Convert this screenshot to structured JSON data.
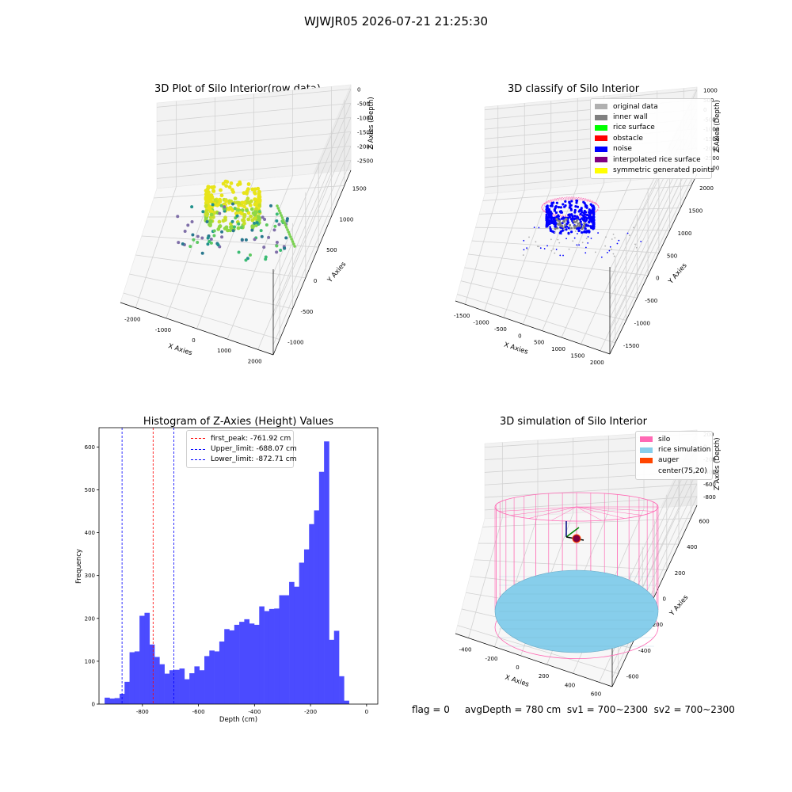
{
  "figure": {
    "suptitle": "WJWJR05 2026-07-21 21:25:30",
    "footer": "flag = 0     avgDepth = 780 cm  sv1 = 700~2300  sv2 = 700~2300"
  },
  "colors": {
    "silo": "#ff69b4",
    "rice_simulation": "#87ceeb",
    "auger": "#ff4500",
    "histogram": "#4b4bff",
    "noise": "#0000ff",
    "inner_wall": "#808080",
    "original_data": "#b0b0b0",
    "rice_surface": "#00ff00",
    "obstacle": "#ff0000",
    "interpolated_rice_surface": "#800080",
    "symmetric_generated_points": "#ffff00"
  },
  "chart_data": [
    {
      "type": "scatter",
      "projection": "3d",
      "title": "3D Plot of Silo Interior(row data)",
      "xlabel": "X Axies",
      "ylabel": "Y Axies",
      "zlabel": "Z Axies (Depth)",
      "x_ticks": [
        "-2000",
        "-1000",
        "0",
        "1000",
        "2000"
      ],
      "y_ticks": [
        "-1000",
        "-500",
        "0",
        "500",
        "1000",
        "1500"
      ],
      "z_ticks": [
        "0",
        "-500",
        "-1000",
        "-1500",
        "-2000",
        "-2500"
      ],
      "colormap": "viridis",
      "grid": true
    },
    {
      "type": "scatter",
      "projection": "3d",
      "title": "3D classify of Silo Interior",
      "xlabel": "X Axies",
      "ylabel": "Y Axies",
      "zlabel": "Z Axies (Depth)",
      "x_ticks": [
        "-1500",
        "-1000",
        "-500",
        "0",
        "500",
        "1000",
        "1500",
        "2000"
      ],
      "y_ticks": [
        "-1500",
        "-1000",
        "-500",
        "0",
        "500",
        "1000",
        "1500",
        "2000"
      ],
      "z_ticks": [
        "1000",
        "500",
        "0",
        "-500",
        "-1000",
        "-1500",
        "-2000",
        "-2500",
        "-3000"
      ],
      "legend_position": "top-right",
      "legend": [
        {
          "label": "original data",
          "color": "#b0b0b0"
        },
        {
          "label": "inner wall",
          "color": "#808080"
        },
        {
          "label": "rice surface",
          "color": "#00ff00"
        },
        {
          "label": "obstacle",
          "color": "#ff0000"
        },
        {
          "label": "noise",
          "color": "#0000ff"
        },
        {
          "label": "interpolated rice surface",
          "color": "#800080"
        },
        {
          "label": "symmetric generated points",
          "color": "#ffff00"
        }
      ],
      "grid": true
    },
    {
      "type": "bar",
      "subtype": "histogram",
      "title": "Histogram of Z-Axies (Height) Values",
      "xlabel": "Depth (cm)",
      "ylabel": "Frequency",
      "xlim": [
        -955,
        40
      ],
      "ylim": [
        0,
        645
      ],
      "x_ticks": [
        -800,
        -600,
        -400,
        -200,
        0
      ],
      "y_ticks": [
        0,
        100,
        200,
        300,
        400,
        500,
        600
      ],
      "bin_start": -935,
      "bin_width": 17.8,
      "values": [
        15,
        13,
        14,
        24,
        52,
        121,
        123,
        206,
        213,
        139,
        110,
        93,
        71,
        79,
        80,
        83,
        58,
        72,
        88,
        79,
        112,
        125,
        123,
        146,
        175,
        172,
        185,
        192,
        198,
        188,
        185,
        228,
        217,
        222,
        223,
        254,
        254,
        285,
        274,
        330,
        361,
        420,
        452,
        542,
        613,
        150,
        171,
        65,
        8
      ],
      "lines": [
        {
          "label": "first_peak: -761.92 cm",
          "x": -761.92,
          "color": "#ff0000"
        },
        {
          "label": "Upper_limit: -688.07 cm",
          "x": -688.07,
          "color": "#0000ff"
        },
        {
          "label": "Lower_limit: -872.71 cm",
          "x": -872.71,
          "color": "#0000ff"
        }
      ],
      "legend_position": "top-center",
      "grid": false
    },
    {
      "type": "area",
      "projection": "3d",
      "title": "3D simulation of Silo Interior",
      "xlabel": "X Axies",
      "ylabel": "Y Axies",
      "zlabel": "Z Axies (Depth)",
      "x_ticks": [
        "-400",
        "-200",
        "0",
        "200",
        "400",
        "600"
      ],
      "y_ticks": [
        "-600",
        "-400",
        "-200",
        "0",
        "200",
        "400",
        "600"
      ],
      "z_ticks": [
        "200",
        "0",
        "-200",
        "-400",
        "-600",
        "-800"
      ],
      "legend_position": "top-right",
      "legend": [
        {
          "label": "silo",
          "color": "#ff69b4"
        },
        {
          "label": "rice simulation",
          "color": "#87ceeb"
        },
        {
          "label": "auger",
          "color": "#ff4500"
        },
        {
          "label": "center(75,20)",
          "color": ""
        }
      ],
      "grid": true
    }
  ]
}
